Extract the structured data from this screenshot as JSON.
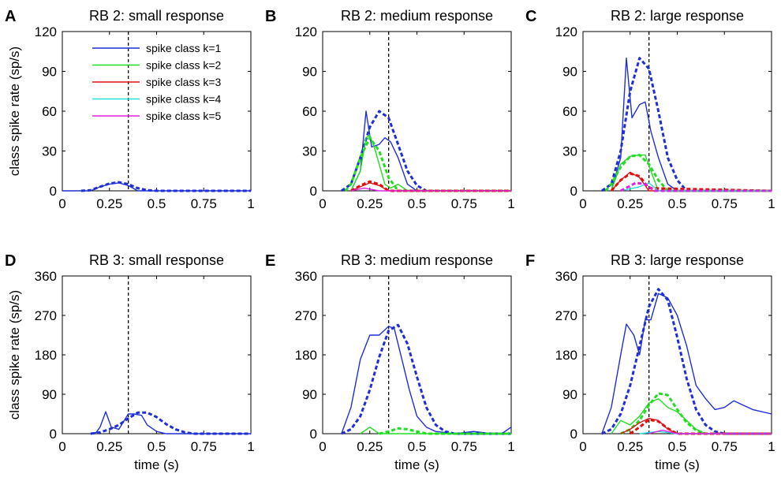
{
  "colors": {
    "k1": "#1f2fd6",
    "k2": "#22dd22",
    "k3": "#e01010",
    "k4": "#22dddd",
    "k5": "#e020e0",
    "stim": "#000000"
  },
  "legend": {
    "placement": "top-left",
    "entries": [
      {
        "label": "spike class k=1",
        "color_key": "k1"
      },
      {
        "label": "spike class k=2",
        "color_key": "k2"
      },
      {
        "label": "spike class k=3",
        "color_key": "k3"
      },
      {
        "label": "spike class k=4",
        "color_key": "k4"
      },
      {
        "label": "spike class k=5",
        "color_key": "k5"
      }
    ]
  },
  "chart_data": [
    {
      "panel": "A",
      "type": "line",
      "title": "RB 2: small response",
      "xlabel": "",
      "ylabel": "class spike rate (sp/s)",
      "xlim": [
        0,
        1
      ],
      "ylim": [
        0,
        120
      ],
      "xticks": [
        "0",
        "0.25",
        "0.5",
        "0.75",
        "1"
      ],
      "yticks": [
        "0",
        "30",
        "60",
        "90",
        "120"
      ],
      "stimulus_marker_x": 0.35,
      "show_legend": true,
      "series": [
        {
          "color_key": "k1",
          "style": "solid",
          "x": [
            0,
            0.15,
            0.2,
            0.25,
            0.3,
            0.35,
            0.4,
            1
          ],
          "y": [
            0,
            0,
            3,
            5,
            6,
            4,
            0,
            0
          ]
        },
        {
          "color_key": "k1",
          "style": "dashed",
          "x": [
            0.1,
            0.15,
            0.2,
            0.25,
            0.3,
            0.35,
            0.4,
            0.45,
            0.5,
            1
          ],
          "y": [
            0,
            0.5,
            3,
            5.5,
            6.5,
            5,
            2,
            0.5,
            0,
            0
          ]
        }
      ]
    },
    {
      "panel": "B",
      "type": "line",
      "title": "RB 2: medium response",
      "xlabel": "",
      "ylabel": "",
      "xlim": [
        0,
        1
      ],
      "ylim": [
        0,
        120
      ],
      "xticks": [
        "0",
        "0.25",
        "0.5",
        "0.75",
        "1"
      ],
      "yticks": [
        "0",
        "30",
        "60",
        "90",
        "120"
      ],
      "stimulus_marker_x": 0.35,
      "show_legend": false,
      "series": [
        {
          "color_key": "k1",
          "style": "solid",
          "x": [
            0.15,
            0.2,
            0.23,
            0.26,
            0.3,
            0.33,
            0.36,
            0.4,
            0.45,
            0.5,
            1
          ],
          "y": [
            0,
            15,
            60,
            33,
            35,
            40,
            37,
            25,
            5,
            0,
            0
          ]
        },
        {
          "color_key": "k1",
          "style": "dashed",
          "x": [
            0.1,
            0.15,
            0.2,
            0.25,
            0.3,
            0.35,
            0.4,
            0.45,
            0.5,
            0.55,
            1
          ],
          "y": [
            0,
            5,
            25,
            48,
            60,
            55,
            35,
            15,
            4,
            0,
            0
          ]
        },
        {
          "color_key": "k2",
          "style": "solid",
          "x": [
            0.15,
            0.2,
            0.23,
            0.25,
            0.28,
            0.3,
            0.33,
            0.36,
            0.4,
            0.45,
            1
          ],
          "y": [
            0,
            15,
            40,
            42,
            30,
            20,
            5,
            2,
            5,
            0,
            0
          ]
        },
        {
          "color_key": "k2",
          "style": "dashed",
          "x": [
            0.12,
            0.15,
            0.2,
            0.25,
            0.3,
            0.35,
            0.4,
            1
          ],
          "y": [
            0,
            5,
            25,
            40,
            30,
            10,
            0,
            0
          ]
        },
        {
          "color_key": "k3",
          "style": "solid",
          "x": [
            0.15,
            0.2,
            0.25,
            0.3,
            0.35,
            1
          ],
          "y": [
            0,
            3,
            6,
            4,
            0,
            0
          ]
        },
        {
          "color_key": "k3",
          "style": "dashed",
          "x": [
            0.15,
            0.2,
            0.25,
            0.3,
            0.35,
            1
          ],
          "y": [
            0,
            4,
            7,
            5,
            0,
            0
          ]
        },
        {
          "color_key": "k5",
          "style": "solid",
          "x": [
            0.15,
            0.22,
            0.3,
            1
          ],
          "y": [
            0,
            2,
            0,
            0
          ]
        }
      ]
    },
    {
      "panel": "C",
      "type": "line",
      "title": "RB 2: large response",
      "xlabel": "",
      "ylabel": "",
      "xlim": [
        0,
        1
      ],
      "ylim": [
        0,
        120
      ],
      "xticks": [
        "0",
        "0.25",
        "0.5",
        "0.75",
        "1"
      ],
      "yticks": [
        "0",
        "30",
        "60",
        "90",
        "120"
      ],
      "stimulus_marker_x": 0.35,
      "show_legend": false,
      "series": [
        {
          "color_key": "k1",
          "style": "solid",
          "x": [
            0.15,
            0.2,
            0.23,
            0.26,
            0.3,
            0.33,
            0.36,
            0.4,
            0.45,
            0.5,
            1
          ],
          "y": [
            0,
            25,
            100,
            55,
            65,
            67,
            45,
            25,
            5,
            0,
            0
          ]
        },
        {
          "color_key": "k1",
          "style": "dashed",
          "x": [
            0.1,
            0.15,
            0.2,
            0.25,
            0.3,
            0.35,
            0.4,
            0.45,
            0.5,
            0.55,
            1
          ],
          "y": [
            0,
            5,
            30,
            75,
            100,
            92,
            60,
            25,
            8,
            0,
            0
          ]
        },
        {
          "color_key": "k2",
          "style": "solid",
          "x": [
            0.15,
            0.2,
            0.25,
            0.3,
            0.33,
            0.36,
            0.4,
            1
          ],
          "y": [
            0,
            20,
            26,
            27,
            27,
            15,
            0,
            0
          ]
        },
        {
          "color_key": "k2",
          "style": "dashed",
          "x": [
            0.12,
            0.15,
            0.2,
            0.25,
            0.3,
            0.35,
            0.4,
            0.45,
            1
          ],
          "y": [
            0,
            5,
            18,
            26,
            27,
            20,
            8,
            0,
            0
          ]
        },
        {
          "color_key": "k3",
          "style": "solid",
          "x": [
            0.15,
            0.2,
            0.25,
            0.3,
            0.35,
            1
          ],
          "y": [
            0,
            8,
            14,
            10,
            0,
            0
          ]
        },
        {
          "color_key": "k3",
          "style": "dashed",
          "x": [
            0.15,
            0.2,
            0.25,
            0.3,
            0.35,
            1
          ],
          "y": [
            0,
            8,
            13,
            11,
            2,
            0
          ]
        },
        {
          "color_key": "k4",
          "style": "solid",
          "x": [
            0.2,
            0.3,
            0.35,
            0.4,
            1
          ],
          "y": [
            0,
            3,
            6,
            0,
            0
          ]
        },
        {
          "color_key": "k5",
          "style": "dashed",
          "x": [
            0.2,
            0.28,
            0.33,
            0.38,
            1
          ],
          "y": [
            0,
            6,
            5,
            0,
            0
          ]
        }
      ]
    },
    {
      "panel": "D",
      "type": "line",
      "title": "RB 3: small response",
      "xlabel": "time (s)",
      "ylabel": "class spike rate (sp/s)",
      "xlim": [
        0,
        1
      ],
      "ylim": [
        0,
        360
      ],
      "xticks": [
        "0",
        "0.25",
        "0.5",
        "0.75",
        "1"
      ],
      "yticks": [
        "0",
        "90",
        "180",
        "270",
        "360"
      ],
      "stimulus_marker_x": 0.35,
      "show_legend": false,
      "series": [
        {
          "color_key": "k1",
          "style": "solid",
          "x": [
            0.15,
            0.18,
            0.2,
            0.23,
            0.26,
            0.3,
            0.35,
            0.38,
            0.42,
            0.45,
            0.5,
            0.55,
            1
          ],
          "y": [
            0,
            3,
            15,
            50,
            15,
            10,
            45,
            45,
            42,
            20,
            5,
            0,
            0
          ]
        },
        {
          "color_key": "k1",
          "style": "dashed",
          "x": [
            0.15,
            0.2,
            0.25,
            0.3,
            0.35,
            0.4,
            0.45,
            0.5,
            0.55,
            0.6,
            0.65,
            0.7,
            1
          ],
          "y": [
            0,
            3,
            10,
            20,
            35,
            48,
            48,
            38,
            22,
            10,
            3,
            0,
            0
          ]
        }
      ]
    },
    {
      "panel": "E",
      "type": "line",
      "title": "RB 3: medium response",
      "xlabel": "time (s)",
      "ylabel": "",
      "xlim": [
        0,
        1
      ],
      "ylim": [
        0,
        360
      ],
      "xticks": [
        "0",
        "0.25",
        "0.5",
        "0.75",
        "1"
      ],
      "yticks": [
        "0",
        "90",
        "180",
        "270",
        "360"
      ],
      "stimulus_marker_x": 0.35,
      "show_legend": false,
      "series": [
        {
          "color_key": "k1",
          "style": "solid",
          "x": [
            0.1,
            0.15,
            0.2,
            0.25,
            0.3,
            0.35,
            0.38,
            0.42,
            0.46,
            0.5,
            0.55,
            0.6,
            0.7,
            0.8,
            0.9,
            0.95,
            1
          ],
          "y": [
            0,
            60,
            170,
            225,
            225,
            245,
            240,
            170,
            100,
            40,
            15,
            5,
            0,
            5,
            0,
            0,
            15
          ]
        },
        {
          "color_key": "k1",
          "style": "dashed",
          "x": [
            0.1,
            0.15,
            0.2,
            0.25,
            0.3,
            0.35,
            0.4,
            0.45,
            0.5,
            0.55,
            0.6,
            0.65,
            0.7,
            1
          ],
          "y": [
            0,
            10,
            40,
            100,
            175,
            235,
            248,
            205,
            130,
            60,
            20,
            5,
            0,
            0
          ]
        },
        {
          "color_key": "k2",
          "style": "solid",
          "x": [
            0.2,
            0.25,
            0.3,
            1
          ],
          "y": [
            0,
            15,
            0,
            0
          ]
        },
        {
          "color_key": "k2",
          "style": "dashed",
          "x": [
            0.3,
            0.35,
            0.4,
            0.45,
            0.5,
            0.55,
            1
          ],
          "y": [
            0,
            5,
            12,
            10,
            5,
            0,
            0
          ]
        }
      ]
    },
    {
      "panel": "F",
      "type": "line",
      "title": "RB 3: large response",
      "xlabel": "time (s)",
      "ylabel": "",
      "xlim": [
        0,
        1
      ],
      "ylim": [
        0,
        360
      ],
      "xticks": [
        "0",
        "0.25",
        "0.5",
        "0.75",
        "1"
      ],
      "yticks": [
        "0",
        "90",
        "180",
        "270",
        "360"
      ],
      "stimulus_marker_x": 0.35,
      "show_legend": false,
      "series": [
        {
          "color_key": "k1",
          "style": "solid",
          "x": [
            0.1,
            0.15,
            0.2,
            0.23,
            0.27,
            0.3,
            0.33,
            0.36,
            0.4,
            0.45,
            0.5,
            0.55,
            0.6,
            0.65,
            0.7,
            0.75,
            0.8,
            0.85,
            0.9,
            0.95,
            1
          ],
          "y": [
            0,
            60,
            180,
            250,
            225,
            180,
            260,
            260,
            320,
            310,
            270,
            200,
            110,
            80,
            55,
            60,
            75,
            65,
            55,
            50,
            45
          ]
        },
        {
          "color_key": "k1",
          "style": "dashed",
          "x": [
            0.1,
            0.15,
            0.2,
            0.25,
            0.3,
            0.35,
            0.4,
            0.45,
            0.5,
            0.55,
            0.6,
            0.65,
            0.7,
            0.75,
            1
          ],
          "y": [
            0,
            10,
            45,
            110,
            200,
            290,
            330,
            305,
            220,
            125,
            55,
            20,
            5,
            0,
            0
          ]
        },
        {
          "color_key": "k2",
          "style": "solid",
          "x": [
            0.15,
            0.2,
            0.25,
            0.3,
            0.35,
            0.4,
            0.45,
            0.5,
            0.55,
            0.6,
            0.65,
            1
          ],
          "y": [
            0,
            30,
            20,
            40,
            70,
            80,
            60,
            50,
            30,
            10,
            0,
            0
          ]
        },
        {
          "color_key": "k2",
          "style": "dashed",
          "x": [
            0.2,
            0.25,
            0.3,
            0.35,
            0.4,
            0.45,
            0.5,
            0.55,
            0.6,
            0.65,
            1
          ],
          "y": [
            0,
            10,
            30,
            65,
            92,
            88,
            55,
            25,
            8,
            0,
            0
          ]
        },
        {
          "color_key": "k3",
          "style": "solid",
          "x": [
            0.2,
            0.25,
            0.3,
            0.35,
            0.4,
            0.45,
            0.5,
            1
          ],
          "y": [
            0,
            10,
            25,
            35,
            30,
            10,
            0,
            0
          ]
        },
        {
          "color_key": "k3",
          "style": "dashed",
          "x": [
            0.25,
            0.3,
            0.35,
            0.4,
            0.45,
            0.5,
            1
          ],
          "y": [
            0,
            15,
            32,
            28,
            12,
            0,
            0
          ]
        },
        {
          "color_key": "k4",
          "style": "solid",
          "x": [
            0.3,
            0.4,
            0.5,
            1
          ],
          "y": [
            0,
            5,
            0,
            0
          ]
        },
        {
          "color_key": "k5",
          "style": "solid",
          "x": [
            0.35,
            0.42,
            0.5,
            1
          ],
          "y": [
            0,
            8,
            0,
            0
          ]
        }
      ]
    }
  ]
}
